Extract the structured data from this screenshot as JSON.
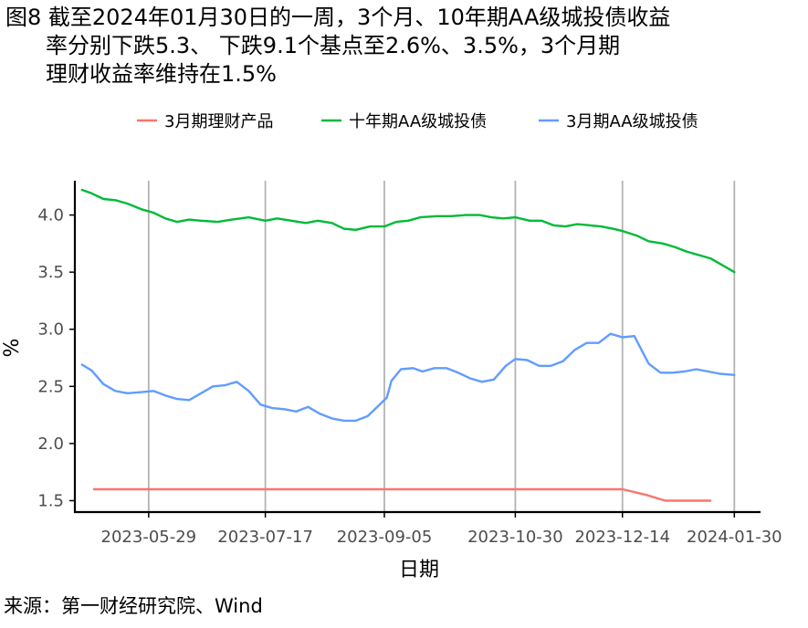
{
  "figure": {
    "title_line1": "图8  截至2024年01月30日的一周，3个月、10年期AA级城投债收益",
    "title_line2": "率分别下跌5.3、 下跌9.1个基点至2.6%、3.5%，3个月期",
    "title_line3": "理财收益率维持在1.5%",
    "source": "来源：第一财经研究院、Wind"
  },
  "chart_data": {
    "type": "line",
    "xlabel": "日期",
    "ylabel": "%",
    "x_ticks": [
      "2023-05-29",
      "2023-07-17",
      "2023-09-05",
      "2023-10-30",
      "2023-12-14",
      "2024-01-30"
    ],
    "y_ticks": [
      1.5,
      2.0,
      2.5,
      3.0,
      3.5,
      4.0
    ],
    "ylim": [
      1.4,
      4.3
    ],
    "xlim": [
      "2023-04-28",
      "2024-02-10"
    ],
    "grid": "vertical lines at x ticks",
    "legend_position": "top",
    "series": [
      {
        "name": "3月期理财产品",
        "color": "#F8766D",
        "points": [
          [
            "2023-05-06",
            1.6
          ],
          [
            "2023-06-15",
            1.6
          ],
          [
            "2023-08-01",
            1.6
          ],
          [
            "2023-09-15",
            1.6
          ],
          [
            "2023-11-01",
            1.6
          ],
          [
            "2023-12-14",
            1.6
          ],
          [
            "2023-12-24",
            1.55
          ],
          [
            "2024-01-01",
            1.5
          ],
          [
            "2024-01-20",
            1.5
          ]
        ]
      },
      {
        "name": "十年期AA级城投债",
        "color": "#00BA38",
        "points": [
          [
            "2023-05-01",
            4.22
          ],
          [
            "2023-05-05",
            4.19
          ],
          [
            "2023-05-10",
            4.14
          ],
          [
            "2023-05-15",
            4.13
          ],
          [
            "2023-05-20",
            4.1
          ],
          [
            "2023-05-26",
            4.05
          ],
          [
            "2023-05-31",
            4.02
          ],
          [
            "2023-06-05",
            3.97
          ],
          [
            "2023-06-10",
            3.94
          ],
          [
            "2023-06-15",
            3.96
          ],
          [
            "2023-06-20",
            3.95
          ],
          [
            "2023-06-27",
            3.94
          ],
          [
            "2023-07-03",
            3.96
          ],
          [
            "2023-07-10",
            3.98
          ],
          [
            "2023-07-17",
            3.95
          ],
          [
            "2023-07-22",
            3.97
          ],
          [
            "2023-07-28",
            3.95
          ],
          [
            "2023-08-03",
            3.93
          ],
          [
            "2023-08-08",
            3.95
          ],
          [
            "2023-08-14",
            3.93
          ],
          [
            "2023-08-19",
            3.88
          ],
          [
            "2023-08-24",
            3.87
          ],
          [
            "2023-08-30",
            3.9
          ],
          [
            "2023-09-05",
            3.9
          ],
          [
            "2023-09-10",
            3.94
          ],
          [
            "2023-09-15",
            3.95
          ],
          [
            "2023-09-20",
            3.98
          ],
          [
            "2023-09-27",
            3.99
          ],
          [
            "2023-10-03",
            3.99
          ],
          [
            "2023-10-09",
            4.0
          ],
          [
            "2023-10-15",
            4.0
          ],
          [
            "2023-10-20",
            3.98
          ],
          [
            "2023-10-25",
            3.97
          ],
          [
            "2023-10-30",
            3.98
          ],
          [
            "2023-11-05",
            3.95
          ],
          [
            "2023-11-10",
            3.95
          ],
          [
            "2023-11-15",
            3.91
          ],
          [
            "2023-11-20",
            3.9
          ],
          [
            "2023-11-25",
            3.92
          ],
          [
            "2023-11-30",
            3.91
          ],
          [
            "2023-12-05",
            3.9
          ],
          [
            "2023-12-10",
            3.88
          ],
          [
            "2023-12-14",
            3.86
          ],
          [
            "2023-12-20",
            3.82
          ],
          [
            "2023-12-25",
            3.77
          ],
          [
            "2023-12-31",
            3.75
          ],
          [
            "2024-01-05",
            3.72
          ],
          [
            "2024-01-10",
            3.68
          ],
          [
            "2024-01-15",
            3.65
          ],
          [
            "2024-01-20",
            3.62
          ],
          [
            "2024-01-25",
            3.56
          ],
          [
            "2024-01-30",
            3.5
          ]
        ]
      },
      {
        "name": "3月期AA级城投债",
        "color": "#619CFF",
        "points": [
          [
            "2023-05-01",
            2.69
          ],
          [
            "2023-05-05",
            2.64
          ],
          [
            "2023-05-10",
            2.52
          ],
          [
            "2023-05-15",
            2.46
          ],
          [
            "2023-05-20",
            2.44
          ],
          [
            "2023-05-26",
            2.45
          ],
          [
            "2023-05-31",
            2.46
          ],
          [
            "2023-06-05",
            2.42
          ],
          [
            "2023-06-10",
            2.39
          ],
          [
            "2023-06-15",
            2.38
          ],
          [
            "2023-06-20",
            2.44
          ],
          [
            "2023-06-25",
            2.5
          ],
          [
            "2023-06-30",
            2.51
          ],
          [
            "2023-07-05",
            2.54
          ],
          [
            "2023-07-10",
            2.46
          ],
          [
            "2023-07-15",
            2.34
          ],
          [
            "2023-07-20",
            2.31
          ],
          [
            "2023-07-25",
            2.3
          ],
          [
            "2023-07-30",
            2.28
          ],
          [
            "2023-08-04",
            2.32
          ],
          [
            "2023-08-09",
            2.26
          ],
          [
            "2023-08-14",
            2.22
          ],
          [
            "2023-08-19",
            2.2
          ],
          [
            "2023-08-24",
            2.2
          ],
          [
            "2023-08-29",
            2.24
          ],
          [
            "2023-09-03",
            2.34
          ],
          [
            "2023-09-06",
            2.4
          ],
          [
            "2023-09-08",
            2.55
          ],
          [
            "2023-09-12",
            2.65
          ],
          [
            "2023-09-17",
            2.66
          ],
          [
            "2023-09-21",
            2.63
          ],
          [
            "2023-09-26",
            2.66
          ],
          [
            "2023-10-01",
            2.66
          ],
          [
            "2023-10-06",
            2.62
          ],
          [
            "2023-10-11",
            2.57
          ],
          [
            "2023-10-16",
            2.54
          ],
          [
            "2023-10-21",
            2.56
          ],
          [
            "2023-10-26",
            2.68
          ],
          [
            "2023-10-30",
            2.74
          ],
          [
            "2023-11-04",
            2.73
          ],
          [
            "2023-11-09",
            2.68
          ],
          [
            "2023-11-14",
            2.68
          ],
          [
            "2023-11-19",
            2.72
          ],
          [
            "2023-11-24",
            2.82
          ],
          [
            "2023-11-29",
            2.88
          ],
          [
            "2023-12-04",
            2.88
          ],
          [
            "2023-12-09",
            2.96
          ],
          [
            "2023-12-14",
            2.93
          ],
          [
            "2023-12-19",
            2.94
          ],
          [
            "2023-12-22",
            2.82
          ],
          [
            "2023-12-25",
            2.7
          ],
          [
            "2023-12-30",
            2.62
          ],
          [
            "2024-01-04",
            2.62
          ],
          [
            "2024-01-09",
            2.63
          ],
          [
            "2024-01-14",
            2.65
          ],
          [
            "2024-01-19",
            2.63
          ],
          [
            "2024-01-24",
            2.61
          ],
          [
            "2024-01-30",
            2.6
          ]
        ]
      }
    ]
  }
}
